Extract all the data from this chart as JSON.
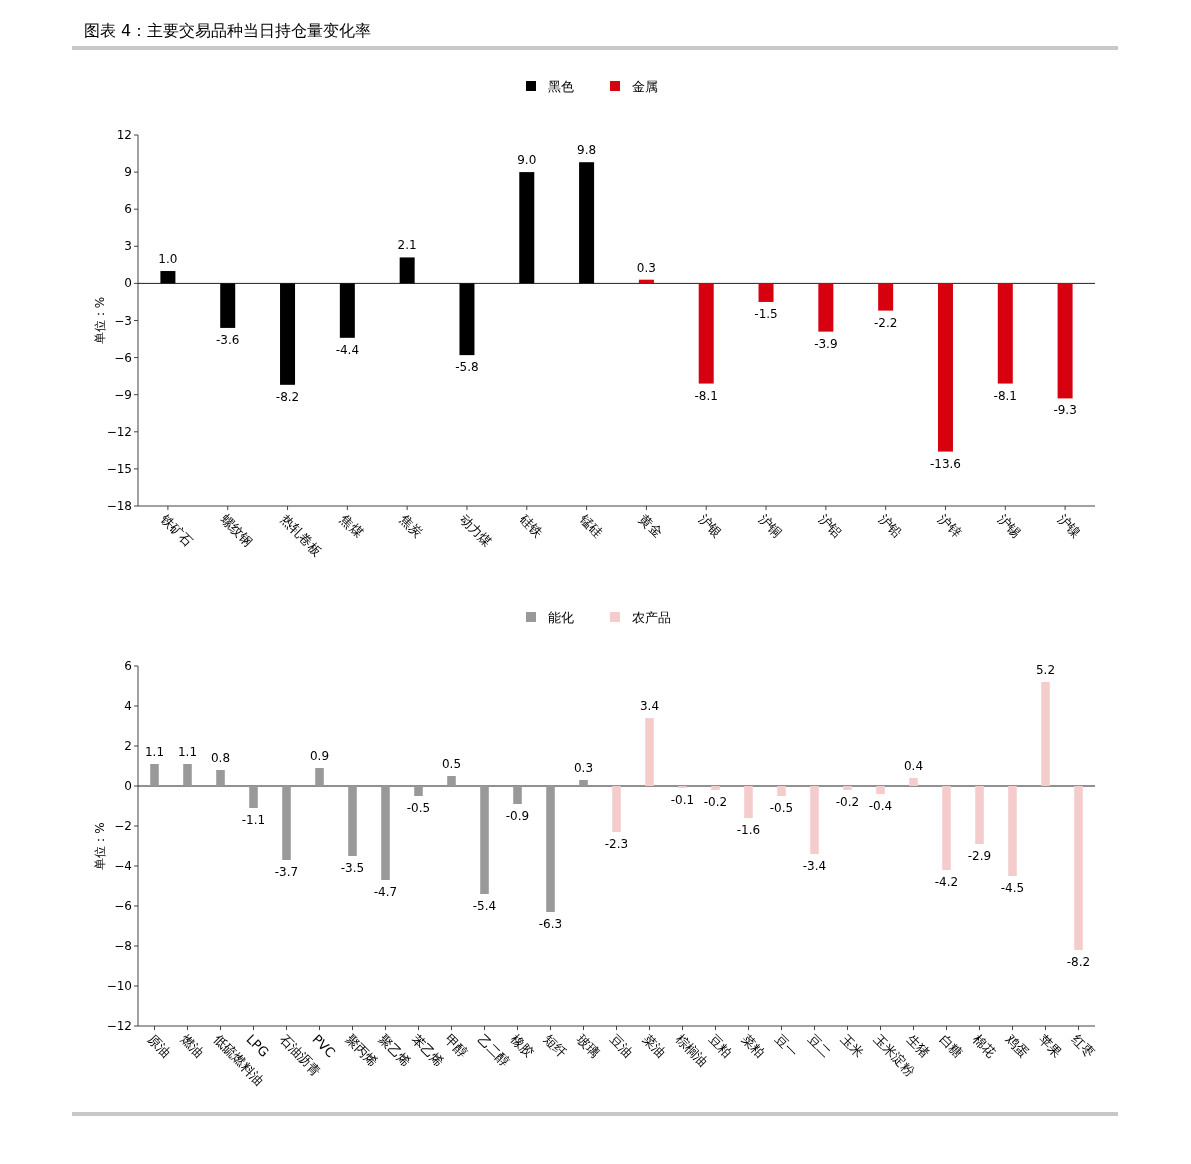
{
  "chart_data": [
    {
      "type": "bar",
      "title": "图表 4：主要交易品种当日持仓量变化率",
      "ylabel": "单位：%",
      "legend": "top",
      "categories": [
        "铁矿石",
        "螺纹钢",
        "热轧卷板",
        "焦煤",
        "焦炭",
        "动力煤",
        "硅铁",
        "锰硅",
        "黄金",
        "沪银",
        "沪铜",
        "沪铝",
        "沪铅",
        "沪锌",
        "沪锡",
        "沪镍"
      ],
      "ylim": [
        -18,
        12
      ],
      "yticks": [
        -18,
        -15,
        -12,
        -9,
        -6,
        -3,
        0,
        3,
        6,
        9,
        12
      ],
      "series": [
        {
          "name": "黑色",
          "color": "#000000",
          "values": [
            1.0,
            -3.6,
            -8.2,
            -4.4,
            2.1,
            -5.8,
            9.0,
            9.8,
            null,
            null,
            null,
            null,
            null,
            null,
            null,
            null
          ],
          "value_labels": [
            "1.0",
            "-3.6",
            "-8.2",
            "-4.4",
            "2.1",
            "-5.8",
            "9.0",
            "9.8",
            null,
            null,
            null,
            null,
            null,
            null,
            null,
            null
          ]
        },
        {
          "name": "金属",
          "color": "#d7000f",
          "values": [
            null,
            null,
            null,
            null,
            null,
            null,
            null,
            null,
            0.3,
            -8.1,
            -1.5,
            -3.9,
            -2.2,
            -13.6,
            -8.1,
            -9.3
          ],
          "value_labels": [
            null,
            null,
            null,
            null,
            null,
            null,
            null,
            null,
            "0.3",
            "-8.1",
            "-1.5",
            "-3.9",
            "-2.2",
            "-13.6",
            "-8.1",
            "-9.3"
          ]
        }
      ]
    },
    {
      "type": "bar",
      "ylabel": "单位：%",
      "legend": "top",
      "categories": [
        "原油",
        "燃油",
        "低硫燃料油",
        "LPG",
        "石油沥青",
        "PVC",
        "聚丙烯",
        "聚乙烯",
        "苯乙烯",
        "甲醇",
        "乙二醇",
        "橡胶",
        "短纤",
        "玻璃",
        "豆油",
        "菜油",
        "棕榈油",
        "豆粕",
        "菜粕",
        "豆一",
        "豆二",
        "玉米",
        "玉米淀粉",
        "生猪",
        "白糖",
        "棉花",
        "鸡蛋",
        "苹果",
        "红枣"
      ],
      "ylim": [
        -12,
        6
      ],
      "yticks": [
        -12,
        -10,
        -8,
        -6,
        -4,
        -2,
        0,
        2,
        4,
        6
      ],
      "series": [
        {
          "name": "能化",
          "color": "#999999",
          "values": [
            1.1,
            1.1,
            0.8,
            -1.1,
            -3.7,
            0.9,
            -3.5,
            -4.7,
            -0.5,
            0.5,
            -5.4,
            -0.9,
            -6.3,
            0.3,
            null,
            null,
            null,
            null,
            null,
            null,
            null,
            null,
            null,
            null,
            null,
            null,
            null,
            null,
            null
          ],
          "value_labels": [
            "1.1",
            "1.1",
            "0.8",
            "-1.1",
            "-3.7",
            "0.9",
            "-3.5",
            "-4.7",
            "-0.5",
            "0.5",
            "-5.4",
            "-0.9",
            "-6.3",
            "0.3",
            null,
            null,
            null,
            null,
            null,
            null,
            null,
            null,
            null,
            null,
            null,
            null,
            null,
            null,
            null
          ]
        },
        {
          "name": "农产品",
          "color": "#f4cccc",
          "values": [
            null,
            null,
            null,
            null,
            null,
            null,
            null,
            null,
            null,
            null,
            null,
            null,
            null,
            null,
            -2.3,
            3.4,
            -0.1,
            -0.2,
            -1.6,
            -0.5,
            -3.4,
            -0.2,
            -0.4,
            0.4,
            -4.2,
            -2.9,
            -4.5,
            5.2,
            -8.2
          ],
          "value_labels": [
            null,
            null,
            null,
            null,
            null,
            null,
            null,
            null,
            null,
            null,
            null,
            null,
            null,
            null,
            "-2.3",
            "3.4",
            "-0.1",
            "-0.2",
            "-1.6",
            "-0.5",
            "-3.4",
            "-0.2",
            "-0.4",
            "0.4",
            "-4.2",
            "-2.9",
            "-4.5",
            "5.2",
            "-8.2"
          ]
        }
      ]
    }
  ]
}
